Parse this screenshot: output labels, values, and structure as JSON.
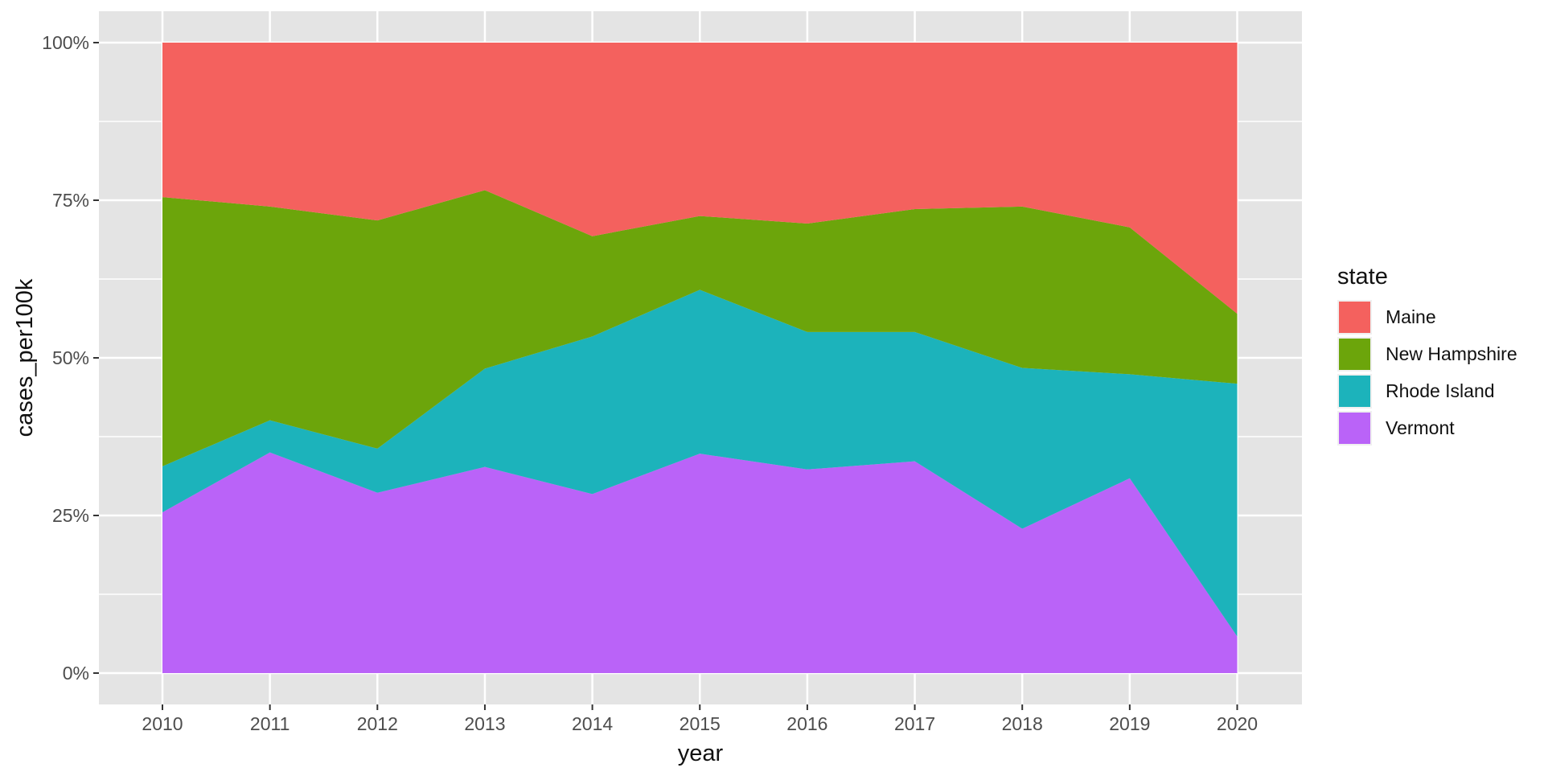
{
  "page": {
    "background": "#FFFFFF"
  },
  "panel": {
    "background": "#E4E4E4",
    "grid_color": "#FFFFFF",
    "tick_color": "#333333",
    "tick_label_color": "#4D4D4D",
    "axis_title_color": "#111111"
  },
  "chart_data": {
    "type": "area",
    "stacking": "percent_100_filled",
    "title": "",
    "xlabel": "year",
    "ylabel": "cases_per100k",
    "x": [
      2010,
      2011,
      2012,
      2013,
      2014,
      2015,
      2016,
      2017,
      2018,
      2019,
      2020
    ],
    "x_tick_labels": [
      "2010",
      "2011",
      "2012",
      "2013",
      "2014",
      "2015",
      "2016",
      "2017",
      "2018",
      "2019",
      "2020"
    ],
    "y_ticks_percent": [
      0,
      25,
      50,
      75,
      100
    ],
    "y_tick_labels": [
      "0%",
      "25%",
      "50%",
      "75%",
      "100%"
    ],
    "ylim_percent": [
      0,
      100
    ],
    "grid": "horizontal major and minor white gridlines, vertical major white gridlines per year, gray panel",
    "legend_title": "state",
    "legend_position": "right",
    "stack_order_bottom_to_top": [
      "Vermont",
      "Rhode Island",
      "New Hampshire",
      "Maine"
    ],
    "series": [
      {
        "name": "Maine",
        "color": "#F4615E",
        "values_percent": [
          24.5,
          26.0,
          28.2,
          23.4,
          30.7,
          27.5,
          28.7,
          26.4,
          26.0,
          29.3,
          43.0
        ]
      },
      {
        "name": "New Hampshire",
        "color": "#6CA50B",
        "values_percent": [
          42.7,
          33.9,
          36.2,
          28.3,
          15.9,
          11.7,
          17.2,
          19.5,
          25.6,
          23.3,
          11.1
        ]
      },
      {
        "name": "Rhode Island",
        "color": "#1CB3BB",
        "values_percent": [
          7.3,
          5.1,
          7.0,
          15.6,
          25.0,
          26.0,
          21.8,
          20.5,
          25.5,
          16.5,
          40.1
        ]
      },
      {
        "name": "Vermont",
        "color": "#BA63F8",
        "values_percent": [
          25.5,
          35.0,
          28.6,
          32.7,
          28.4,
          34.8,
          32.3,
          33.6,
          22.9,
          30.9,
          5.8
        ]
      }
    ]
  }
}
